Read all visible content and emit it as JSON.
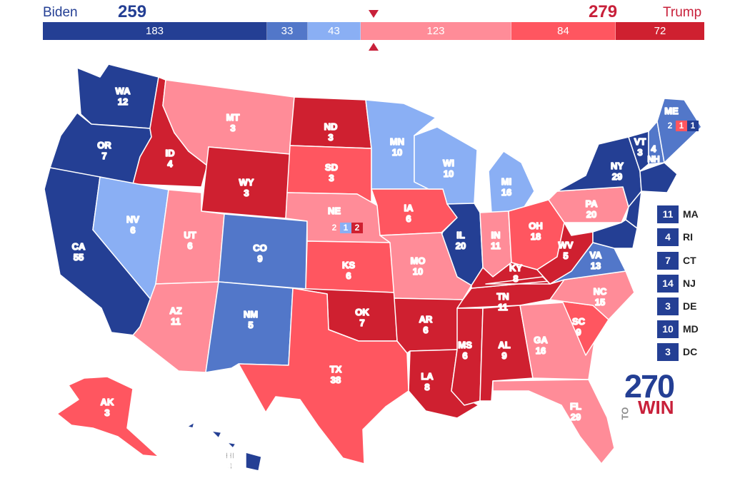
{
  "header": {
    "dem_name": "Biden",
    "dem_total": "259",
    "rep_name": "Trump",
    "rep_total": "279",
    "segments": [
      {
        "label": "183",
        "value": 183,
        "color": "#243f94"
      },
      {
        "label": "33",
        "value": 33,
        "color": "#5277c9"
      },
      {
        "label": "43",
        "value": 43,
        "color": "#8aaff4"
      },
      {
        "label": "123",
        "value": 123,
        "color": "#ff8c98"
      },
      {
        "label": "84",
        "value": 84,
        "color": "#ff5660"
      },
      {
        "label": "72",
        "value": 72,
        "color": "#cf2030"
      }
    ]
  },
  "colors": {
    "safe_d": "#243f94",
    "likely_d": "#5277c9",
    "lean_d": "#8aaff4",
    "lean_r": "#ff8c98",
    "likely_r": "#ff5660",
    "safe_r": "#cf2030"
  },
  "states": {
    "WA": {
      "abbr": "WA",
      "ev": "12"
    },
    "OR": {
      "abbr": "OR",
      "ev": "7"
    },
    "CA": {
      "abbr": "CA",
      "ev": "55"
    },
    "ID": {
      "abbr": "ID",
      "ev": "4"
    },
    "NV": {
      "abbr": "NV",
      "ev": "6"
    },
    "MT": {
      "abbr": "MT",
      "ev": "3"
    },
    "WY": {
      "abbr": "WY",
      "ev": "3"
    },
    "UT": {
      "abbr": "UT",
      "ev": "6"
    },
    "AZ": {
      "abbr": "AZ",
      "ev": "11"
    },
    "CO": {
      "abbr": "CO",
      "ev": "9"
    },
    "NM": {
      "abbr": "NM",
      "ev": "5"
    },
    "ND": {
      "abbr": "ND",
      "ev": "3"
    },
    "SD": {
      "abbr": "SD",
      "ev": "3"
    },
    "NE": {
      "abbr": "NE",
      "ev": ""
    },
    "KS": {
      "abbr": "KS",
      "ev": "6"
    },
    "OK": {
      "abbr": "OK",
      "ev": "7"
    },
    "TX": {
      "abbr": "TX",
      "ev": "38"
    },
    "MN": {
      "abbr": "MN",
      "ev": "10"
    },
    "IA": {
      "abbr": "IA",
      "ev": "6"
    },
    "MO": {
      "abbr": "MO",
      "ev": "10"
    },
    "AR": {
      "abbr": "AR",
      "ev": "6"
    },
    "LA": {
      "abbr": "LA",
      "ev": "8"
    },
    "WI": {
      "abbr": "WI",
      "ev": "10"
    },
    "IL": {
      "abbr": "IL",
      "ev": "20"
    },
    "MS": {
      "abbr": "MS",
      "ev": "6"
    },
    "MI": {
      "abbr": "MI",
      "ev": "16"
    },
    "IN": {
      "abbr": "IN",
      "ev": "11"
    },
    "KY": {
      "abbr": "KY",
      "ev": "8"
    },
    "TN": {
      "abbr": "TN",
      "ev": "11"
    },
    "AL": {
      "abbr": "AL",
      "ev": "9"
    },
    "OH": {
      "abbr": "OH",
      "ev": "18"
    },
    "GA": {
      "abbr": "GA",
      "ev": "16"
    },
    "FL": {
      "abbr": "FL",
      "ev": "29"
    },
    "SC": {
      "abbr": "SC",
      "ev": "9"
    },
    "NC": {
      "abbr": "NC",
      "ev": "15"
    },
    "VA": {
      "abbr": "VA",
      "ev": "13"
    },
    "WV": {
      "abbr": "WV",
      "ev": "5"
    },
    "PA": {
      "abbr": "PA",
      "ev": "20"
    },
    "NY": {
      "abbr": "NY",
      "ev": "29"
    },
    "VT": {
      "abbr": "VT",
      "ev": "3"
    },
    "NH": {
      "abbr": "NH",
      "ev": "4"
    },
    "ME": {
      "abbr": "ME",
      "ev": ""
    },
    "AK": {
      "abbr": "AK",
      "ev": "3"
    },
    "HI": {
      "abbr": "HI",
      "ev": "4"
    }
  },
  "splits": {
    "ne": [
      "2",
      "1",
      "2"
    ],
    "me": [
      "2",
      "1",
      "1"
    ]
  },
  "small_states": [
    {
      "abbr": "MA",
      "ev": "11"
    },
    {
      "abbr": "RI",
      "ev": "4"
    },
    {
      "abbr": "CT",
      "ev": "7"
    },
    {
      "abbr": "NJ",
      "ev": "14"
    },
    {
      "abbr": "DE",
      "ev": "3"
    },
    {
      "abbr": "MD",
      "ev": "10"
    },
    {
      "abbr": "DC",
      "ev": "3"
    }
  ],
  "logo": {
    "top": "270",
    "to": "TO",
    "win": "WIN"
  }
}
